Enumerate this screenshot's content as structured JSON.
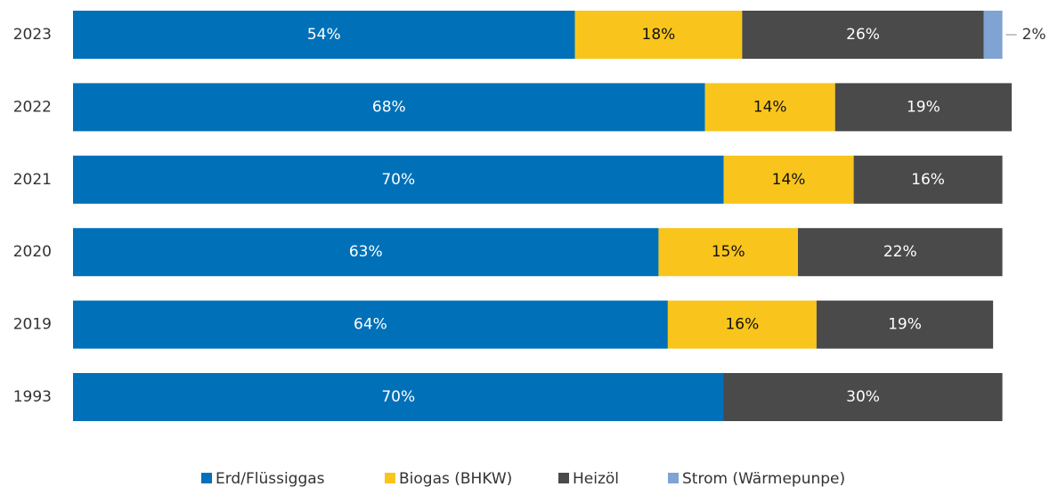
{
  "chart_data": {
    "type": "stacked-bar",
    "orientation": "horizontal",
    "categories": [
      "2023",
      "2022",
      "2021",
      "2020",
      "2019",
      "1993"
    ],
    "xlim": [
      0,
      101
    ],
    "series": [
      {
        "name": "Erd/Flüssiggas",
        "color": "#0070b8",
        "values": [
          54,
          68,
          70,
          63,
          64,
          70
        ],
        "value_labels": [
          "54%",
          "68%",
          "70%",
          "63%",
          "64%",
          "70%"
        ]
      },
      {
        "name": "Biogas (BHKW)",
        "color": "#f9c51c",
        "values": [
          18,
          14,
          14,
          15,
          16,
          null
        ],
        "value_labels": [
          "18%",
          "14%",
          "14%",
          "15%",
          "16%",
          null
        ]
      },
      {
        "name": "Heizöl",
        "color": "#4a4a4a",
        "values": [
          26,
          19,
          16,
          22,
          19,
          30
        ],
        "value_labels": [
          "26%",
          "19%",
          "16%",
          "22%",
          "19%",
          "30%"
        ]
      },
      {
        "name": "Strom (Wärmepunpe)",
        "color": "#7fa3d3",
        "values": [
          2,
          null,
          null,
          null,
          null,
          null
        ],
        "value_labels": [
          "2%",
          null,
          null,
          null,
          null,
          null
        ]
      }
    ],
    "legend": "bottom"
  }
}
